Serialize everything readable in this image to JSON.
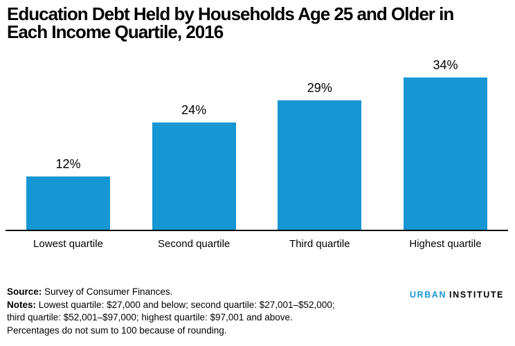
{
  "title": {
    "line1": "Education Debt Held by Households Age 25 and Older in",
    "line2": "Each Income Quartile, 2016"
  },
  "chart_data": {
    "type": "bar",
    "title": "Education Debt Held by Households Age 25 and Older in Each Income Quartile, 2016",
    "categories": [
      "Lowest quartile",
      "Second quartile",
      "Third quartile",
      "Highest quartile"
    ],
    "values": [
      12,
      24,
      29,
      34
    ],
    "value_labels": [
      "12%",
      "24%",
      "29%",
      "34%"
    ],
    "unit": "percent",
    "ylim": [
      0,
      40
    ],
    "grid": false,
    "legend": "none",
    "bar_color": "#1696d2"
  },
  "footer": {
    "source_label": "Source:",
    "source_text": " Survey of Consumer Finances.",
    "notes_label": "Notes:",
    "notes_line1": " Lowest quartile: $27,000 and below; second quartile: $27,001–$52,000;",
    "notes_line2": "third quartile: $52,001–$97,000; highest quartile: $97,001 and above.",
    "notes_line3": "Percentages do not sum to 100 because of rounding."
  },
  "logo": {
    "word1": "URBAN",
    "word2": "INSTITUTE",
    "word1_color": "#1696d2",
    "word2_color": "#000000"
  },
  "colors": {
    "bar": "#1696d2",
    "axis": "#000000",
    "text": "#000000"
  }
}
